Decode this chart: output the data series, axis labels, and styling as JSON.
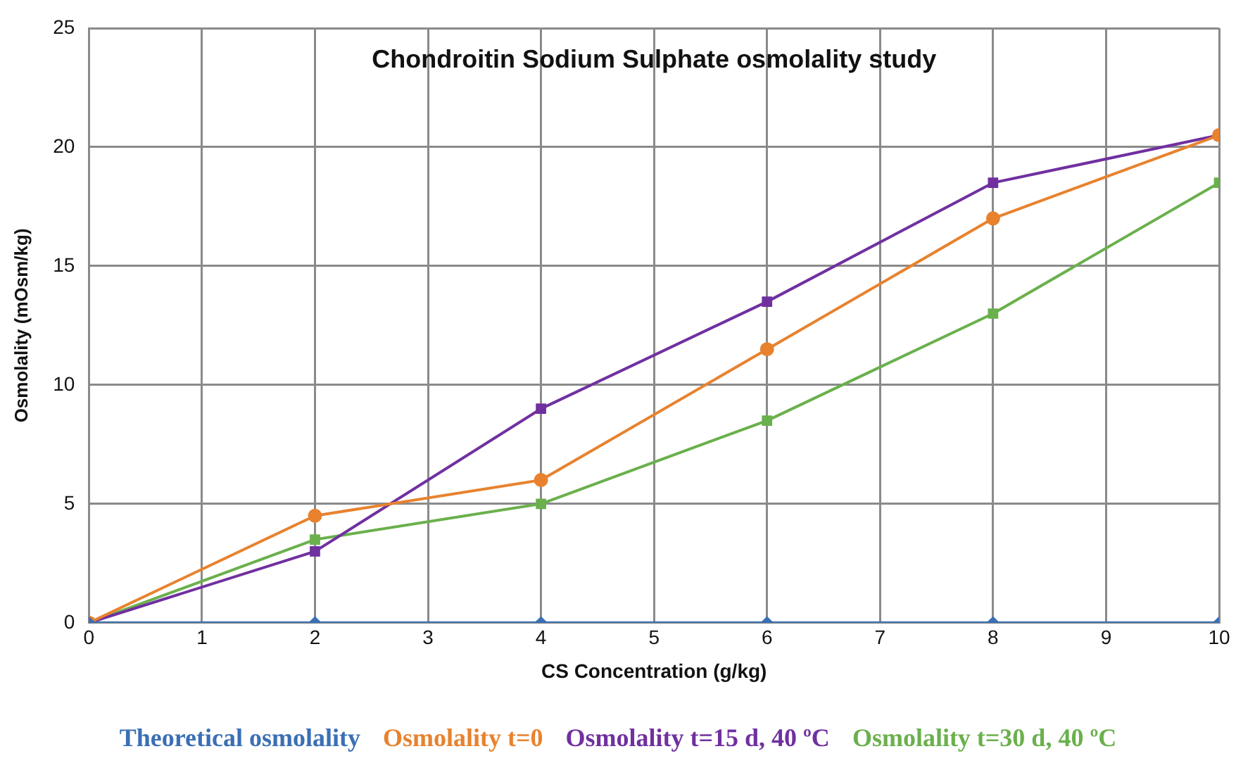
{
  "chart_data": {
    "type": "line",
    "title": "Chondroitin Sodium Sulphate osmolality study",
    "xlabel": "CS Concentration (g/kg)",
    "ylabel": "Osmolality (mOsm/kg)",
    "x": [
      0,
      2,
      4,
      6,
      8,
      10
    ],
    "series": [
      {
        "name": "Theoretical osmolality",
        "color": "#3a6fb5",
        "marker": "diamond",
        "values": [
          0,
          0,
          0,
          0,
          0,
          0
        ]
      },
      {
        "name": "Osmolality t=0",
        "color": "#e8822e",
        "marker": "circle",
        "values": [
          0,
          4.5,
          6,
          11.5,
          17,
          20.5
        ]
      },
      {
        "name": "Osmolality t=15 d, 40 ºC",
        "color": "#7030a0",
        "marker": "square",
        "values": [
          0,
          3,
          9,
          13.5,
          18.5,
          20.5
        ]
      },
      {
        "name": "Osmolality t=30 d, 40 ºC",
        "color": "#6ab04c",
        "marker": "square",
        "values": [
          0,
          3.5,
          5,
          8.5,
          13,
          18.5
        ]
      }
    ],
    "xlim": [
      0,
      10
    ],
    "xticks": [
      0,
      1,
      2,
      3,
      4,
      5,
      6,
      7,
      8,
      9,
      10
    ],
    "ylim": [
      0,
      25
    ],
    "yticks": [
      0,
      5,
      10,
      15,
      20,
      25
    ],
    "grid": true,
    "legend": "bottom",
    "line_style": "solid"
  }
}
